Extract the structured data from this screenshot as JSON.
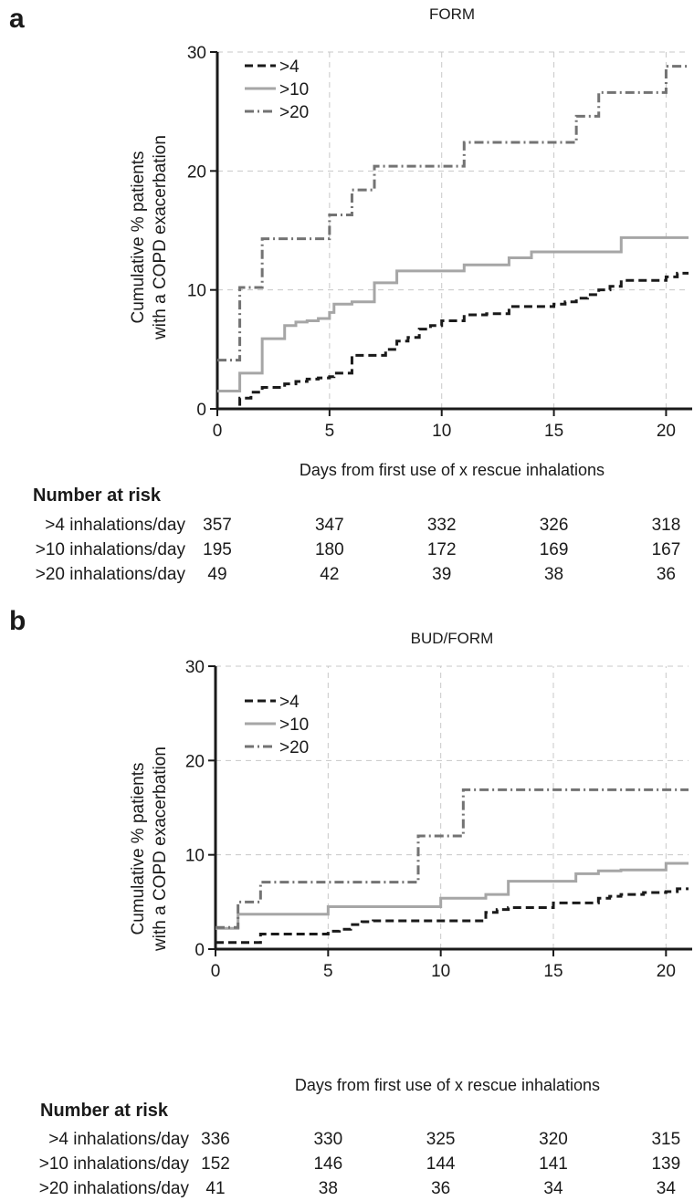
{
  "chart_data": [
    {
      "panel": "a",
      "type": "line",
      "step": true,
      "title": "FORM",
      "xlabel": "Days from first use of x rescue inhalations",
      "ylabel": "Cumulative % patients\nwith a COPD exacerbation",
      "xlim": [
        0,
        21
      ],
      "ylim": [
        0,
        30
      ],
      "xticks": [
        0,
        5,
        10,
        15,
        20
      ],
      "yticks": [
        0,
        10,
        20,
        30
      ],
      "grid": true,
      "legend_position": "top-left",
      "series": [
        {
          "name": ">4",
          "style": "dashed",
          "color": "#1a1a1a",
          "x": [
            0,
            1,
            1.5,
            2,
            3,
            3.5,
            4,
            4.5,
            5,
            5.2,
            6,
            7,
            7.5,
            8,
            8.5,
            9,
            9.5,
            10,
            11,
            12,
            13,
            14,
            15,
            15.5,
            16,
            16.5,
            17,
            17.5,
            18,
            19,
            20,
            20.5,
            21
          ],
          "y": [
            0,
            0.9,
            1.4,
            1.8,
            2.1,
            2.3,
            2.5,
            2.6,
            2.7,
            3.0,
            4.5,
            4.5,
            5.0,
            5.7,
            6.0,
            6.7,
            7.0,
            7.4,
            7.9,
            8.0,
            8.6,
            8.6,
            8.8,
            9.0,
            9.3,
            9.6,
            10.0,
            10.3,
            10.8,
            10.8,
            11.1,
            11.4,
            11.4
          ]
        },
        {
          "name": ">10",
          "style": "solid",
          "color": "#a6a6a6",
          "x": [
            0,
            1,
            2,
            3,
            3.5,
            4,
            4.5,
            5,
            5.2,
            6,
            7,
            7.5,
            8,
            9,
            10,
            11,
            12,
            13,
            14,
            15,
            16,
            17,
            18,
            19,
            20,
            21
          ],
          "y": [
            1.5,
            3.0,
            5.9,
            7.0,
            7.3,
            7.4,
            7.6,
            8.1,
            8.8,
            9.0,
            10.6,
            10.6,
            11.6,
            11.6,
            11.6,
            12.1,
            12.1,
            12.7,
            13.2,
            13.2,
            13.2,
            13.2,
            14.4,
            14.4,
            14.4,
            14.4
          ]
        },
        {
          "name": ">20",
          "style": "dash-dot",
          "color": "#737373",
          "x": [
            0,
            1,
            2,
            5,
            6,
            7,
            11,
            16,
            17,
            20,
            21
          ],
          "y": [
            4.1,
            10.2,
            14.3,
            16.3,
            18.4,
            20.4,
            22.4,
            24.6,
            26.6,
            28.8,
            28.8
          ]
        }
      ],
      "number_at_risk": {
        "title": "Number at risk",
        "timepoints": [
          0,
          5,
          10,
          15,
          20
        ],
        "rows": [
          {
            "label": ">4 inhalations/day",
            "values": [
              "357",
              "347",
              "332",
              "326",
              "318"
            ]
          },
          {
            "label": ">10 inhalations/day",
            "values": [
              "195",
              "180",
              "172",
              "169",
              "167"
            ]
          },
          {
            "label": ">20 inhalations/day",
            "values": [
              "49",
              "42",
              "39",
              "38",
              "36"
            ]
          }
        ]
      }
    },
    {
      "panel": "b",
      "type": "line",
      "step": true,
      "title": "BUD/FORM",
      "xlabel": "Days from first use of x rescue inhalations",
      "ylabel": "Cumulative % patients\nwith a COPD exacerbation",
      "xlim": [
        0,
        21
      ],
      "ylim": [
        0,
        30
      ],
      "xticks": [
        0,
        5,
        10,
        15,
        20
      ],
      "yticks": [
        0,
        10,
        20,
        30
      ],
      "grid": true,
      "legend_position": "top-left",
      "series": [
        {
          "name": ">4",
          "style": "dashed",
          "color": "#1a1a1a",
          "x": [
            0,
            2,
            5,
            5.5,
            6,
            6.5,
            7,
            8,
            9,
            10,
            11,
            12,
            12.5,
            13,
            14,
            15,
            16,
            17,
            17.5,
            18,
            19,
            20,
            20.5,
            21
          ],
          "y": [
            0.7,
            1.6,
            1.9,
            2.1,
            2.6,
            2.9,
            3.0,
            3.0,
            3.0,
            3.0,
            3.0,
            3.9,
            4.2,
            4.4,
            4.4,
            4.9,
            4.9,
            5.4,
            5.6,
            5.8,
            6.0,
            6.1,
            6.4,
            6.4
          ]
        },
        {
          "name": ">10",
          "style": "solid",
          "color": "#a6a6a6",
          "x": [
            0,
            1,
            5,
            9,
            10,
            12,
            13,
            15,
            16,
            17,
            17.5,
            18,
            20,
            21
          ],
          "y": [
            2.2,
            3.7,
            4.5,
            4.5,
            5.4,
            5.8,
            7.2,
            7.2,
            8.0,
            8.3,
            8.3,
            8.4,
            9.1,
            9.1
          ]
        },
        {
          "name": ">20",
          "style": "dash-dot",
          "color": "#737373",
          "x": [
            0,
            1,
            2,
            9,
            11,
            21
          ],
          "y": [
            2.3,
            5.0,
            7.1,
            12.0,
            16.9,
            16.9
          ]
        }
      ],
      "number_at_risk": {
        "title": "Number at risk",
        "timepoints": [
          0,
          5,
          10,
          15,
          20
        ],
        "rows": [
          {
            "label": ">4 inhalations/day",
            "values": [
              "336",
              "330",
              "325",
              "320",
              "315"
            ]
          },
          {
            "label": ">10 inhalations/day",
            "values": [
              "152",
              "146",
              "144",
              "141",
              "139"
            ]
          },
          {
            "label": ">20 inhalations/day",
            "values": [
              "41",
              "38",
              "36",
              "34",
              "34"
            ]
          }
        ]
      }
    }
  ],
  "panels": {
    "a": {
      "letter": "a"
    },
    "b": {
      "letter": "b"
    }
  }
}
